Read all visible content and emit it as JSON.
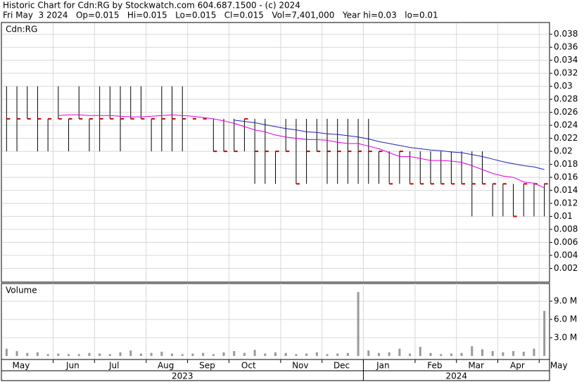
{
  "chart_data": {
    "type": "stock",
    "title": "Historic Chart for Cdn:RG by Stockwatch.com 604.687.1500 - (c) 2024",
    "subtitle": "Fri May  3 2024   Op=0.015   Hi=0.015   Lo=0.015   Cl=0.015   Vol=7,401,000   Year hi=0.03   lo=0.01",
    "panel_label": "Cdn:RG",
    "categories": [
      "May",
      null,
      null,
      null,
      null,
      "Jun",
      null,
      null,
      null,
      "Jul",
      null,
      null,
      null,
      null,
      "Aug",
      null,
      null,
      null,
      "Sep",
      null,
      null,
      null,
      "Oct",
      null,
      null,
      null,
      null,
      "Nov",
      null,
      null,
      null,
      "Dec",
      null,
      null,
      null,
      "Jan",
      null,
      null,
      null,
      null,
      "Feb",
      null,
      null,
      null,
      "Mar",
      null,
      null,
      null,
      "Apr",
      null,
      null,
      null,
      "May"
    ],
    "years": [
      "2023",
      "2024"
    ],
    "high": [
      0.03,
      0.03,
      0.03,
      0.03,
      0.025,
      0.03,
      0.025,
      0.03,
      0.025,
      0.03,
      0.03,
      0.03,
      0.03,
      0.03,
      0.025,
      0.03,
      0.03,
      0.03,
      0.025,
      0.025,
      0.025,
      0.025,
      0.025,
      0.025,
      0.025,
      0.025,
      0.02,
      0.025,
      0.025,
      0.025,
      0.025,
      0.025,
      0.025,
      0.025,
      0.025,
      0.025,
      0.02,
      0.02,
      0.02,
      0.02,
      0.02,
      0.02,
      0.02,
      0.02,
      0.02,
      0.02,
      0.02,
      0.015,
      0.015,
      0.015,
      0.015,
      0.015,
      0.015
    ],
    "low": [
      0.02,
      0.02,
      0.025,
      0.02,
      0.02,
      0.025,
      0.02,
      0.025,
      0.02,
      0.02,
      0.025,
      0.02,
      0.025,
      0.025,
      0.02,
      0.02,
      0.02,
      0.02,
      0.025,
      0.025,
      0.02,
      0.02,
      0.02,
      0.02,
      0.015,
      0.015,
      0.015,
      0.02,
      0.015,
      0.015,
      0.02,
      0.015,
      0.015,
      0.015,
      0.015,
      0.015,
      0.015,
      0.015,
      0.015,
      0.015,
      0.015,
      0.015,
      0.015,
      0.015,
      0.015,
      0.01,
      0.015,
      0.01,
      0.01,
      0.01,
      0.01,
      0.01,
      0.01
    ],
    "close": [
      0.025,
      0.025,
      0.025,
      0.025,
      0.025,
      0.025,
      0.025,
      0.025,
      0.025,
      0.025,
      0.025,
      0.025,
      0.025,
      0.025,
      0.025,
      0.025,
      0.025,
      0.025,
      0.025,
      0.025,
      0.02,
      0.02,
      0.02,
      0.025,
      0.02,
      0.02,
      0.02,
      0.02,
      0.015,
      0.02,
      0.02,
      0.02,
      0.02,
      0.02,
      0.02,
      0.02,
      0.02,
      0.015,
      0.02,
      0.015,
      0.015,
      0.015,
      0.015,
      0.015,
      0.015,
      0.015,
      0.015,
      0.015,
      0.015,
      0.01,
      0.015,
      0.015,
      0.015
    ],
    "bar_color": "#000000",
    "close_color": "#cc0000",
    "series": [
      {
        "color": "#dd00dd",
        "values": [
          null,
          null,
          null,
          null,
          null,
          0.0255,
          0.0256,
          0.0256,
          0.0255,
          0.0255,
          0.0255,
          0.0254,
          0.0253,
          0.0253,
          0.0254,
          0.0255,
          0.0256,
          0.0255,
          0.0254,
          0.0252,
          0.025,
          0.0247,
          0.0243,
          0.0238,
          0.0233,
          0.023,
          0.0225,
          0.0222,
          0.022,
          0.0218,
          0.0218,
          0.0217,
          0.0214,
          0.0212,
          0.0212,
          0.0208,
          0.0204,
          0.0198,
          0.0192,
          0.0192,
          0.0189,
          0.0186,
          0.0186,
          0.0185,
          0.0183,
          0.0178,
          0.0172,
          0.0166,
          0.0162,
          0.016,
          0.0153,
          0.0151,
          0.0144
        ]
      },
      {
        "color": "#2222bb",
        "values": [
          null,
          null,
          null,
          null,
          null,
          null,
          null,
          null,
          null,
          null,
          null,
          null,
          null,
          null,
          null,
          null,
          null,
          null,
          null,
          null,
          null,
          null,
          0.0248,
          0.0246,
          0.0244,
          0.0241,
          0.0238,
          0.0235,
          0.0233,
          0.023,
          0.0229,
          0.0227,
          0.0226,
          0.0224,
          0.0222,
          0.0219,
          0.0215,
          0.0212,
          0.0209,
          0.0206,
          0.0204,
          0.0202,
          0.0201,
          0.0199,
          0.0198,
          0.0195,
          0.0192,
          0.0188,
          0.0184,
          0.0181,
          0.0178,
          0.0176,
          0.0172
        ]
      }
    ],
    "ylim": [
      0,
      0.0397
    ],
    "yticks": [
      0.002,
      0.004,
      0.006,
      0.008,
      0.01,
      0.012,
      0.014,
      0.016,
      0.018,
      0.02,
      0.022,
      0.024,
      0.026,
      0.028,
      0.03,
      0.032,
      0.034,
      0.036,
      0.038
    ],
    "grid": true,
    "volume": {
      "label": "Volume",
      "color": "#999999",
      "values": [
        1200000,
        800000,
        500000,
        600000,
        300000,
        400000,
        300000,
        300000,
        500000,
        400000,
        300000,
        600000,
        900000,
        400000,
        500000,
        700000,
        400000,
        300000,
        400000,
        500000,
        300000,
        600000,
        800000,
        500000,
        1000000,
        400000,
        600000,
        500000,
        300000,
        400000,
        600000,
        300000,
        400000,
        500000,
        10500000,
        900000,
        500000,
        600000,
        1200000,
        400000,
        1500000,
        500000,
        300000,
        400000,
        500000,
        1600000,
        1100000,
        800000,
        600000,
        800000,
        700000,
        1200000,
        7400000
      ],
      "ylim": [
        0,
        11900000
      ],
      "yticks": [
        {
          "value": 3000000,
          "label": "3.0 M"
        },
        {
          "value": 6000000,
          "label": "6.0 M"
        },
        {
          "value": 9000000,
          "label": "9.0 M"
        }
      ]
    }
  }
}
